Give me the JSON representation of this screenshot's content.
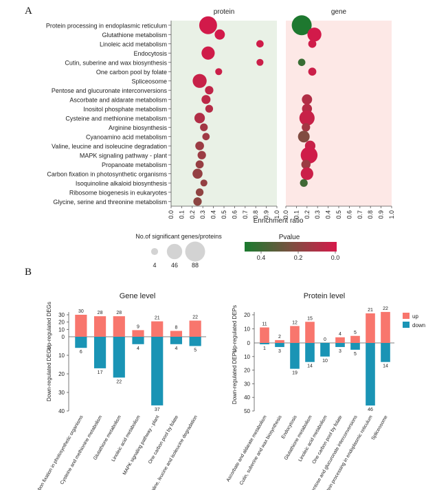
{
  "panel_a_letter": "A",
  "panel_b_letter": "B",
  "chart_data": [
    {
      "type": "scatter",
      "chart_id": "dotplot",
      "title_left": "protein",
      "title_right": "gene",
      "xlabel": "Enrichment ratio",
      "xlim": [
        0.0,
        1.0
      ],
      "xticks": [
        "0.0",
        "0.1",
        "0.2",
        "0.3",
        "0.4",
        "0.5",
        "0.6",
        "0.7",
        "0.8",
        "0.9",
        "1.0"
      ],
      "pathways": [
        "Protein processing in endoplasmic reticulum",
        "Glutathione metabolism",
        "Linoleic acid metabolism",
        "Endocytosis",
        "Cutin, suberine and wax biosynthesis",
        "One carbon pool by folate",
        "Spliceosome",
        "Pentose and glucuronate interconversions",
        "Ascorbate and aldarate metabolism",
        "Inositol phosphate metabolism",
        "Cysteine and methionine metabolism",
        "Arginine biosynthesis",
        "Cyanoamino acid metabolism",
        "Valine, leucine and isoleucine degradation",
        "MAPK signaling pathway - plant",
        "Propanoate metabolism",
        "Carbon fixation in photosynthetic organisms",
        "Isoquinoline alkaloid biosynthesis",
        "Ribosome biogenesis in eukaryotes",
        "Glycine, serine and threonine metabolism"
      ],
      "protein_points": [
        {
          "row": 0,
          "ratio": 0.35,
          "count": 67,
          "p": 0.01
        },
        {
          "row": 1,
          "ratio": 0.46,
          "count": 15,
          "p": 0.01
        },
        {
          "row": 2,
          "ratio": 0.84,
          "count": 5,
          "p": 0.02
        },
        {
          "row": 3,
          "ratio": 0.35,
          "count": 31,
          "p": 0.02
        },
        {
          "row": 4,
          "ratio": 0.84,
          "count": 4,
          "p": 0.03
        },
        {
          "row": 5,
          "ratio": 0.45,
          "count": 4,
          "p": 0.03
        },
        {
          "row": 6,
          "ratio": 0.27,
          "count": 36,
          "p": 0.04
        },
        {
          "row": 7,
          "ratio": 0.36,
          "count": 8,
          "p": 0.06
        },
        {
          "row": 8,
          "ratio": 0.33,
          "count": 10,
          "p": 0.07
        },
        {
          "row": 9,
          "ratio": 0.36,
          "count": 6,
          "p": 0.09
        },
        {
          "row": 10,
          "ratio": 0.27,
          "count": 16,
          "p": 0.1
        },
        {
          "row": 11,
          "ratio": 0.31,
          "count": 6,
          "p": 0.14
        },
        {
          "row": 12,
          "ratio": 0.33,
          "count": 5,
          "p": 0.15
        },
        {
          "row": 13,
          "ratio": 0.27,
          "count": 9,
          "p": 0.16
        },
        {
          "row": 14,
          "ratio": 0.29,
          "count": 8,
          "p": 0.16
        },
        {
          "row": 15,
          "ratio": 0.27,
          "count": 7,
          "p": 0.17
        },
        {
          "row": 16,
          "ratio": 0.25,
          "count": 14,
          "p": 0.18
        },
        {
          "row": 17,
          "ratio": 0.31,
          "count": 4,
          "p": 0.18
        },
        {
          "row": 18,
          "ratio": 0.27,
          "count": 6,
          "p": 0.19
        },
        {
          "row": 19,
          "ratio": 0.25,
          "count": 8,
          "p": 0.2
        }
      ],
      "gene_points": [
        {
          "row": 0,
          "ratio": 0.15,
          "count": 88,
          "p": 0.49
        },
        {
          "row": 1,
          "ratio": 0.27,
          "count": 36,
          "p": 0.01
        },
        {
          "row": 2,
          "ratio": 0.25,
          "count": 7,
          "p": 0.02
        },
        {
          "row": 4,
          "ratio": 0.15,
          "count": 5,
          "p": 0.42
        },
        {
          "row": 5,
          "ratio": 0.25,
          "count": 7,
          "p": 0.03
        },
        {
          "row": 8,
          "ratio": 0.2,
          "count": 15,
          "p": 0.1
        },
        {
          "row": 9,
          "ratio": 0.2,
          "count": 14,
          "p": 0.09
        },
        {
          "row": 10,
          "ratio": 0.2,
          "count": 45,
          "p": 0.04
        },
        {
          "row": 11,
          "ratio": 0.19,
          "count": 8,
          "p": 0.14
        },
        {
          "row": 12,
          "ratio": 0.17,
          "count": 22,
          "p": 0.23
        },
        {
          "row": 13,
          "ratio": 0.23,
          "count": 16,
          "p": 0.04
        },
        {
          "row": 14,
          "ratio": 0.22,
          "count": 58,
          "p": 0.02
        },
        {
          "row": 15,
          "ratio": 0.19,
          "count": 11,
          "p": 0.16
        },
        {
          "row": 16,
          "ratio": 0.2,
          "count": 27,
          "p": 0.03
        },
        {
          "row": 17,
          "ratio": 0.17,
          "count": 6,
          "p": 0.4
        }
      ],
      "size_legend": {
        "title": "No.of significant genes/proteins",
        "values": [
          4,
          46,
          88
        ]
      },
      "color_legend": {
        "title": "Pvalue",
        "ticks": [
          "0.4",
          "0.2",
          "0.0"
        ],
        "low_color": "#1a7a2e",
        "mid_color": "#7a5040",
        "high_color": "#d6184a",
        "range": [
          0.5,
          0.0
        ]
      }
    },
    {
      "type": "bar",
      "chart_id": "gene_level",
      "title": "Gene level",
      "ylabel_up": "Up-regulated DEGs",
      "ylabel_down": "Down-regulated DEGs",
      "categories": [
        "Carbon fixation in photosynthetic organisms",
        "Cysteine and methionine metabolism",
        "Glutathione metabolism",
        "Linoleic acid metabolism",
        "MAPK signaling pathway - plant",
        "One carbon pool by folate",
        "Valine, leucine and isoleucine degradation"
      ],
      "series": [
        {
          "name": "up",
          "values": [
            30,
            28,
            28,
            9,
            21,
            8,
            22
          ]
        },
        {
          "name": "down",
          "values": [
            6,
            17,
            22,
            4,
            37,
            4,
            5
          ]
        }
      ],
      "ylim_up": [
        0,
        30
      ],
      "ylim_down": [
        0,
        40
      ],
      "yticks_up": [
        0,
        10,
        20,
        30
      ],
      "yticks_down": [
        10,
        20,
        30,
        40
      ]
    },
    {
      "type": "bar",
      "chart_id": "protein_level",
      "title": "Protein level",
      "ylabel_up": "Up-regulated DEPs",
      "ylabel_down": "Down-regulated DEPs",
      "categories": [
        "Ascorbate and aldarate metabolism",
        "Cutin, suberine and wax biosynthesis",
        "Endocytosis",
        "Glutathione metabolism",
        "Linoleic acid metabolism",
        "One carbon pool by folate",
        "Pentose and glucuronate interconversions",
        "Protein processing in endoplasmic reticulum",
        "Spliceosome"
      ],
      "series": [
        {
          "name": "up",
          "values": [
            11,
            2,
            12,
            15,
            0,
            4,
            5,
            21,
            22
          ]
        },
        {
          "name": "down",
          "values": [
            1,
            3,
            19,
            14,
            10,
            3,
            5,
            46,
            14
          ]
        }
      ],
      "ylim_up": [
        0,
        20
      ],
      "ylim_down": [
        0,
        50
      ],
      "yticks_up": [
        0,
        10,
        20
      ],
      "yticks_down": [
        10,
        20,
        30,
        40,
        50
      ],
      "legend": [
        {
          "name": "up",
          "color": "#f8766d"
        },
        {
          "name": "down",
          "color": "#1a94b5"
        }
      ]
    }
  ],
  "colors": {
    "up": "#f8766d",
    "down": "#1a94b5",
    "protein_bg": "#e9f1e6",
    "gene_bg": "#fde8e6"
  }
}
